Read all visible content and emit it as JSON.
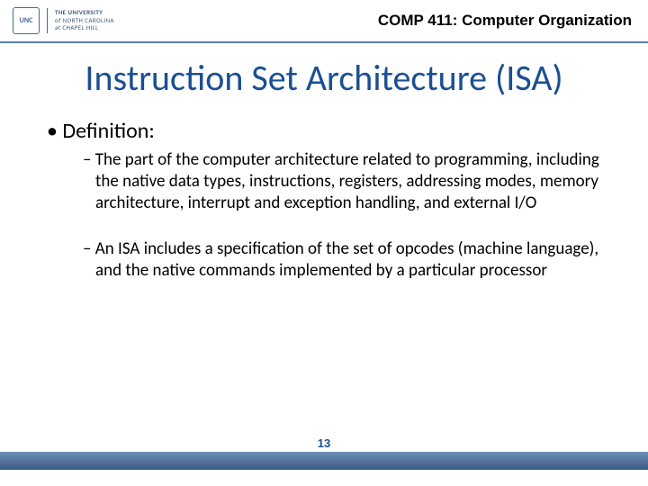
{
  "header": {
    "logo_seal_text": "UNC",
    "logo_line1": "THE UNIVERSITY",
    "logo_line2": "of NORTH CAROLINA",
    "logo_line3": "at CHAPEL HILL",
    "course": "COMP 411: Computer Organization"
  },
  "title": "Instruction Set Architecture (ISA)",
  "bullets": {
    "level1": "Definition:",
    "level2a": "The part of the computer architecture related to programming, including the native data types, instructions, registers, addressing modes, memory architecture, interrupt and exception handling, and external I/O",
    "level2b": "An ISA includes a specification of the set of opcodes (machine language), and the native commands implemented by a particular processor"
  },
  "page_number": "13",
  "colors": {
    "accent": "#1b4f93",
    "header_rule": "#5b7ca8",
    "footer_grad_top": "#6f91b7",
    "footer_grad_bottom": "#3b5a83"
  },
  "fonts": {
    "title_size_pt": 40,
    "l1_size_pt": 24,
    "l2_size_pt": 19,
    "course_size_pt": 17
  }
}
